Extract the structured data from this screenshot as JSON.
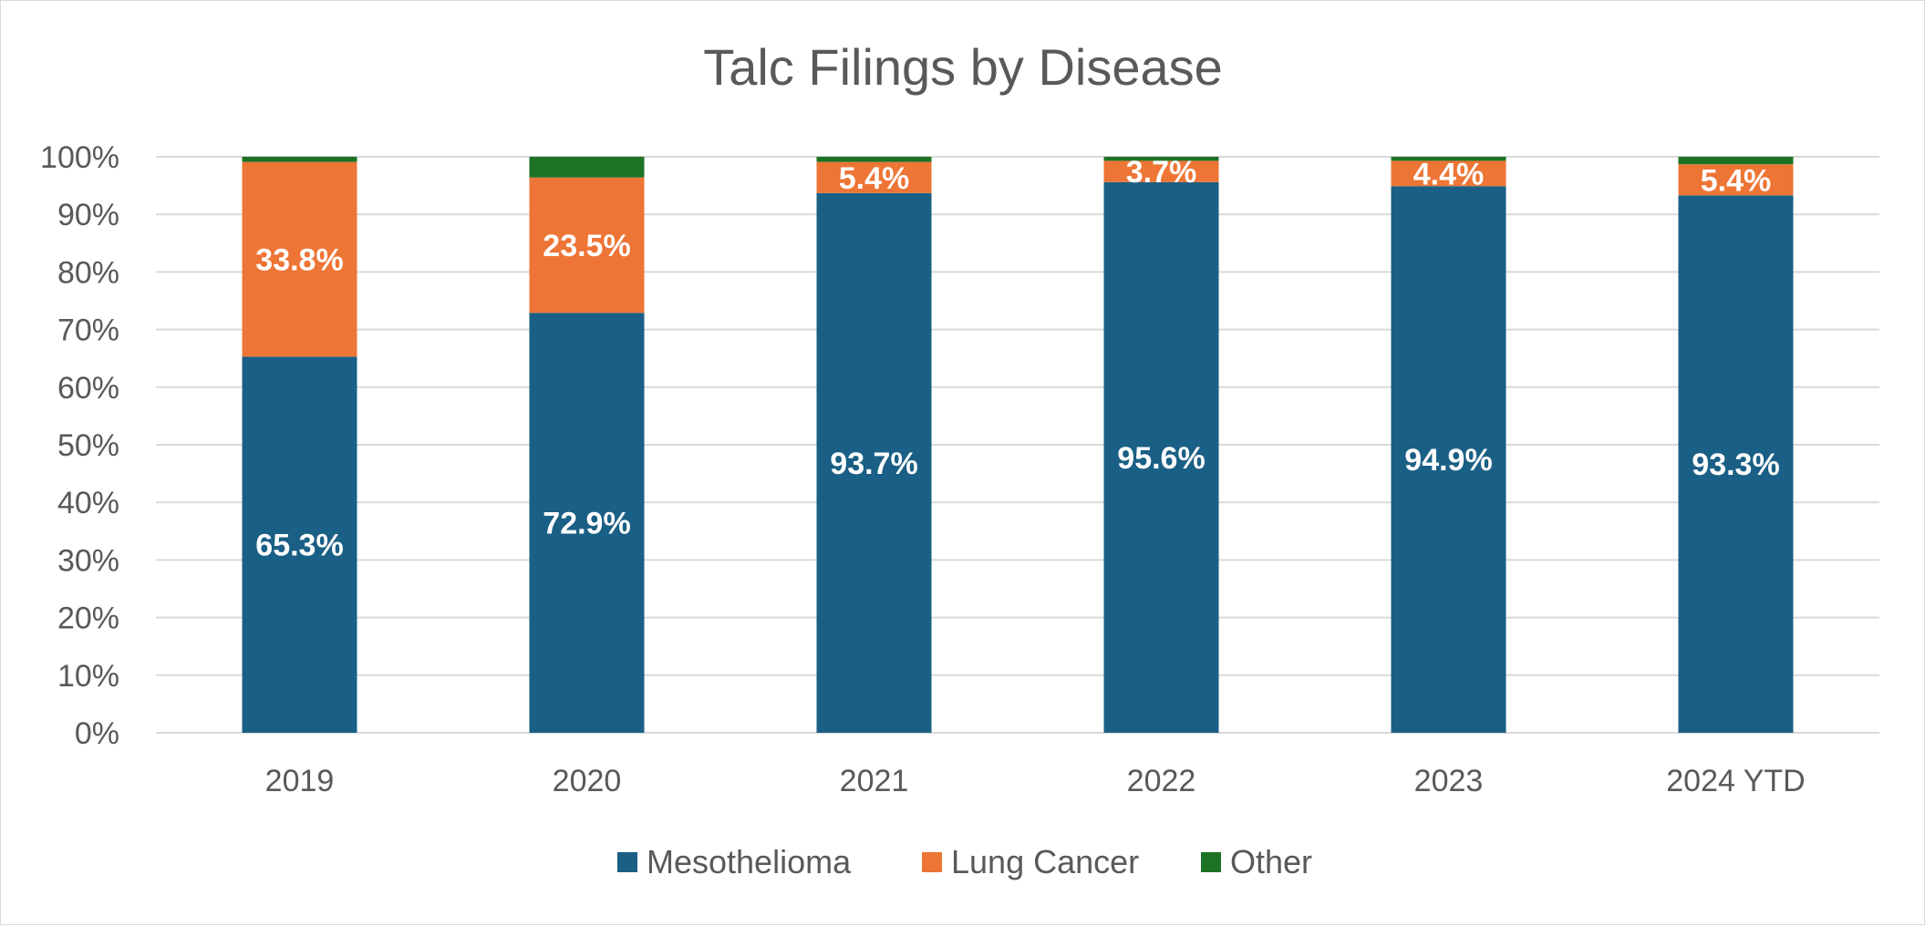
{
  "chart_data": {
    "type": "bar",
    "stacked": true,
    "title": "Talc Filings by Disease",
    "categories": [
      "2019",
      "2020",
      "2021",
      "2022",
      "2023",
      "2024 YTD"
    ],
    "series": [
      {
        "name": "Mesothelioma",
        "color": "#1a5f85",
        "values": [
          65.3,
          72.9,
          93.7,
          95.6,
          94.9,
          93.3
        ],
        "labels": [
          "65.3%",
          "72.9%",
          "93.7%",
          "95.6%",
          "94.9%",
          "93.3%"
        ]
      },
      {
        "name": "Lung Cancer",
        "color": "#ed7535",
        "values": [
          33.8,
          23.5,
          5.4,
          3.7,
          4.4,
          5.4
        ],
        "labels": [
          "33.8%",
          "23.5%",
          "5.4%",
          "3.7%",
          "4.4%",
          "5.4%"
        ]
      },
      {
        "name": "Other",
        "color": "#1d7325",
        "values": [
          0.9,
          3.6,
          0.9,
          0.7,
          0.7,
          1.3
        ],
        "labels": [
          "",
          "",
          "",
          "",
          "",
          ""
        ]
      }
    ],
    "ylim": [
      0,
      100
    ],
    "yticks": [
      "0%",
      "10%",
      "20%",
      "30%",
      "40%",
      "50%",
      "60%",
      "70%",
      "80%",
      "90%",
      "100%"
    ],
    "xlabel": "",
    "ylabel": "",
    "grid": true,
    "gridColor": "#d9d9d9",
    "legend": "bottom"
  }
}
